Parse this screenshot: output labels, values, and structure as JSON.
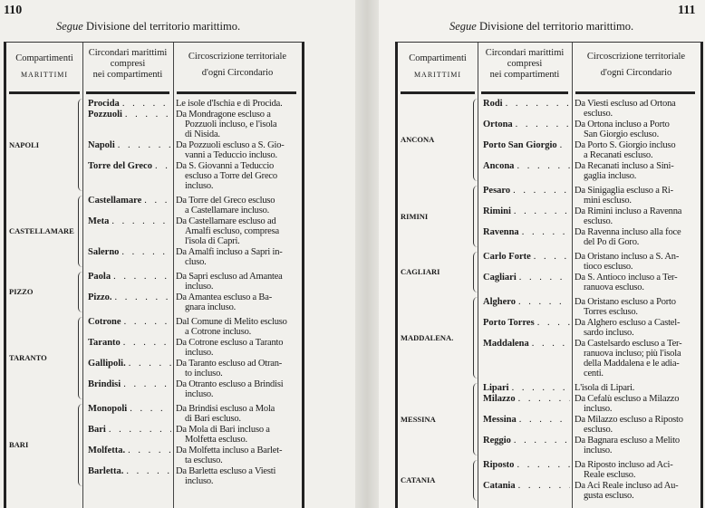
{
  "left_page": {
    "page_number": "110",
    "title_italic": "Segue",
    "title": "Divisione del territorio marittimo.",
    "headers": {
      "col1": [
        "Compartimenti",
        "MARITTIMI"
      ],
      "col2": [
        "Circondari marittimi",
        "compresi",
        "nei compartimenti"
      ],
      "col3": [
        "Circoscrizione territoriale",
        "d'ogni Circondario"
      ]
    },
    "groups": [
      {
        "compartimento": "Napoli",
        "entries": [
          {
            "circondario": "Procida",
            "descrizione": [
              "Le isole d'Ischia e di Procida."
            ]
          },
          {
            "circondario": "Pozzuoli",
            "descrizione": [
              "Da Mondragone escluso a",
              "Pozzuoli incluso, e l'isola",
              "di Nisida."
            ]
          },
          {
            "circondario": "Napoli",
            "descrizione": [
              "Da Pozzuoli escluso a S. Gio-",
              "vanni a Teduccio incluso."
            ]
          },
          {
            "circondario": "Torre del Greco",
            "descrizione": [
              "Da S. Giovanni a Teduccio",
              "escluso a Torre del Greco",
              "incluso."
            ]
          }
        ]
      },
      {
        "compartimento": "Castellamare",
        "entries": [
          {
            "circondario": "Castellamare",
            "descrizione": [
              "Da Torre del Greco escluso",
              "a Castellamare incluso."
            ]
          },
          {
            "circondario": "Meta",
            "descrizione": [
              "Da Castellamare escluso ad",
              "Amalfi escluso, compresa",
              "l'isola di Capri."
            ]
          },
          {
            "circondario": "Salerno",
            "descrizione": [
              "Da Amalfi incluso a Sapri in-",
              "cluso."
            ]
          }
        ]
      },
      {
        "compartimento": "Pizzo",
        "entries": [
          {
            "circondario": "Paola",
            "descrizione": [
              "Da Sapri escluso ad Amantea",
              "incluso."
            ]
          },
          {
            "circondario": "Pizzo.",
            "descrizione": [
              "Da Amantea escluso a Ba-",
              "gnara incluso."
            ]
          }
        ]
      },
      {
        "compartimento": "Taranto",
        "entries": [
          {
            "circondario": "Cotrone",
            "descrizione": [
              "Dal Comune di Melito escluso",
              "a Cotrone incluso."
            ]
          },
          {
            "circondario": "Taranto",
            "descrizione": [
              "Da Cotrone escluso a Taranto",
              "incluso."
            ]
          },
          {
            "circondario": "Gallipoli.",
            "descrizione": [
              "Da Taranto escluso ad Otran-",
              "to incluso."
            ]
          },
          {
            "circondario": "Brindisi",
            "descrizione": [
              "Da Otranto escluso a Brindisi",
              "incluso."
            ]
          }
        ]
      },
      {
        "compartimento": "Bari",
        "entries": [
          {
            "circondario": "Monopoli",
            "descrizione": [
              "Da Brindisi escluso a Mola",
              "di Bari escluso."
            ]
          },
          {
            "circondario": "Bari",
            "descrizione": [
              "Da Mola di Bari incluso a",
              "Molfetta escluso."
            ]
          },
          {
            "circondario": "Molfetta.",
            "descrizione": [
              "Da Molfetta incluso a Barlet-",
              "ta escluso."
            ]
          },
          {
            "circondario": "Barletta.",
            "descrizione": [
              "Da Barletta escluso a Viesti",
              "incluso."
            ]
          }
        ]
      }
    ]
  },
  "right_page": {
    "page_number": "111",
    "title_italic": "Segue",
    "title": "Divisione del territorio marittimo.",
    "headers": {
      "col1": [
        "Compartimenti",
        "MARITTIMI"
      ],
      "col2": [
        "Circondari marittimi",
        "compresi",
        "nei compartimenti"
      ],
      "col3": [
        "Circoscrizione territoriale",
        "d'ogni Circondario"
      ]
    },
    "groups": [
      {
        "compartimento": "Ancona",
        "entries": [
          {
            "circondario": "Rodi",
            "descrizione": [
              "Da Viesti escluso ad Ortona",
              "escluso."
            ]
          },
          {
            "circondario": "Ortona",
            "descrizione": [
              "Da Ortona incluso a Porto",
              "San Giorgio escluso."
            ]
          },
          {
            "circondario": "Porto San Giorgio",
            "descrizione": [
              "Da Porto S. Giorgio incluso",
              "a Recanati escluso."
            ]
          },
          {
            "circondario": "Ancona",
            "descrizione": [
              "Da Recanati incluso a Sini-",
              "gaglia incluso."
            ]
          }
        ]
      },
      {
        "compartimento": "Rimini",
        "entries": [
          {
            "circondario": "Pesaro",
            "descrizione": [
              "Da Sinigaglia escluso a Ri-",
              "mini escluso."
            ]
          },
          {
            "circondario": "Rimini",
            "descrizione": [
              "Da Rimini incluso a Ravenna",
              "escluso."
            ]
          },
          {
            "circondario": "Ravenna",
            "descrizione": [
              "Da Ravenna incluso alla foce",
              "del Po di Goro."
            ]
          }
        ]
      },
      {
        "compartimento": "Cagliari",
        "entries": [
          {
            "circondario": "Carlo Forte",
            "descrizione": [
              "Da Oristano incluso a S. An-",
              "tioco escluso."
            ]
          },
          {
            "circondario": "Cagliari",
            "descrizione": [
              "Da S. Antioco incluso a Ter-",
              "ranuova escluso."
            ]
          }
        ]
      },
      {
        "compartimento": "Maddalena.",
        "entries": [
          {
            "circondario": "Alghero",
            "descrizione": [
              "Da Oristano escluso a Porto",
              "Torres escluso."
            ]
          },
          {
            "circondario": "Porto Torres",
            "descrizione": [
              "Da Alghero escluso a Castel-",
              "sardo incluso."
            ]
          },
          {
            "circondario": "Maddalena",
            "descrizione": [
              "Da Castelsardo escluso a Ter-",
              "ranuova incluso; più l'isola",
              "della Maddalena e le adia-",
              "centi."
            ]
          }
        ]
      },
      {
        "compartimento": "Messina",
        "entries": [
          {
            "circondario": "Lipari",
            "descrizione": [
              "L'isola di Lipari."
            ]
          },
          {
            "circondario": "Milazzo",
            "descrizione": [
              "Da Cefalù escluso a Milazzo",
              "incluso."
            ]
          },
          {
            "circondario": "Messina",
            "descrizione": [
              "Da Milazzo escluso a Riposto",
              "escluso."
            ]
          },
          {
            "circondario": "Reggio",
            "descrizione": [
              "Da Bagnara escluso a Melito",
              "incluso."
            ]
          }
        ]
      },
      {
        "compartimento": "Catania",
        "entries": [
          {
            "circondario": "Riposto",
            "descrizione": [
              "Da Riposto incluso ad Aci-",
              "Reale escluso."
            ]
          },
          {
            "circondario": "Catania",
            "descrizione": [
              "Da Aci Reale incluso ad Au-",
              "gusta escluso."
            ]
          }
        ]
      }
    ]
  }
}
